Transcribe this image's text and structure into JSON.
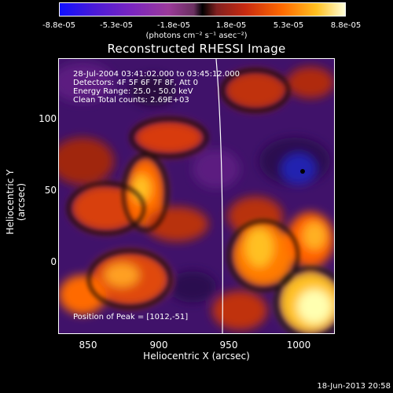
{
  "colorbar": {
    "ticks": [
      "-8.8e-05",
      "-5.3e-05",
      "-1.8e-05",
      "1.8e-05",
      "5.3e-05",
      "8.8e-05"
    ],
    "units": "(photons cm⁻² s⁻¹ asec⁻²)"
  },
  "title": "Reconstructed RHESSI Image",
  "annotations": {
    "time": "28-Jul-2004 03:41:02.000 to 03:45:12.000",
    "detectors": "Detectors: 4F 5F 6F 7F 8F, Att 0",
    "energy": "Energy Range: 25.0 - 50.0 keV",
    "clean": "Clean    Total counts: 2.69E+03",
    "peak": "Position of Peak = [1012,-51]"
  },
  "axes": {
    "xlabel": "Heliocentric X (arcsec)",
    "ylabel": "Heliocentric Y (arcsec)",
    "xticks": [
      "850",
      "900",
      "950",
      "1000"
    ],
    "yticks": [
      "100",
      "50",
      "0"
    ]
  },
  "footer": "18-Jun-2013 20:58"
}
